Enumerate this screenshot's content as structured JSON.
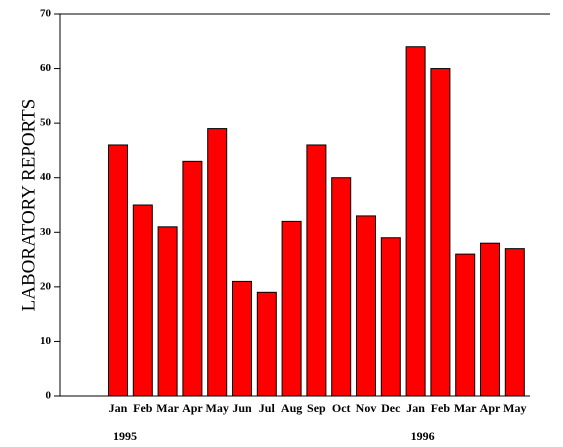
{
  "chart_data": {
    "type": "bar",
    "y_label": "LABORATORY REPORTS",
    "categories": [
      "Jan",
      "Feb",
      "Mar",
      "Apr",
      "May",
      "Jun",
      "Jul",
      "Aug",
      "Sep",
      "Oct",
      "Nov",
      "Dec",
      "Jan",
      "Feb",
      "Mar",
      "Apr",
      "May"
    ],
    "values": [
      46,
      35,
      31,
      43,
      49,
      21,
      19,
      32,
      46,
      40,
      33,
      29,
      64,
      60,
      26,
      28,
      27
    ],
    "year_labels": [
      "1995",
      "1996"
    ],
    "color": "#ff0000",
    "ylim": [
      0,
      70
    ],
    "yticks": [
      0,
      10,
      20,
      30,
      40,
      50,
      60,
      70
    ]
  }
}
